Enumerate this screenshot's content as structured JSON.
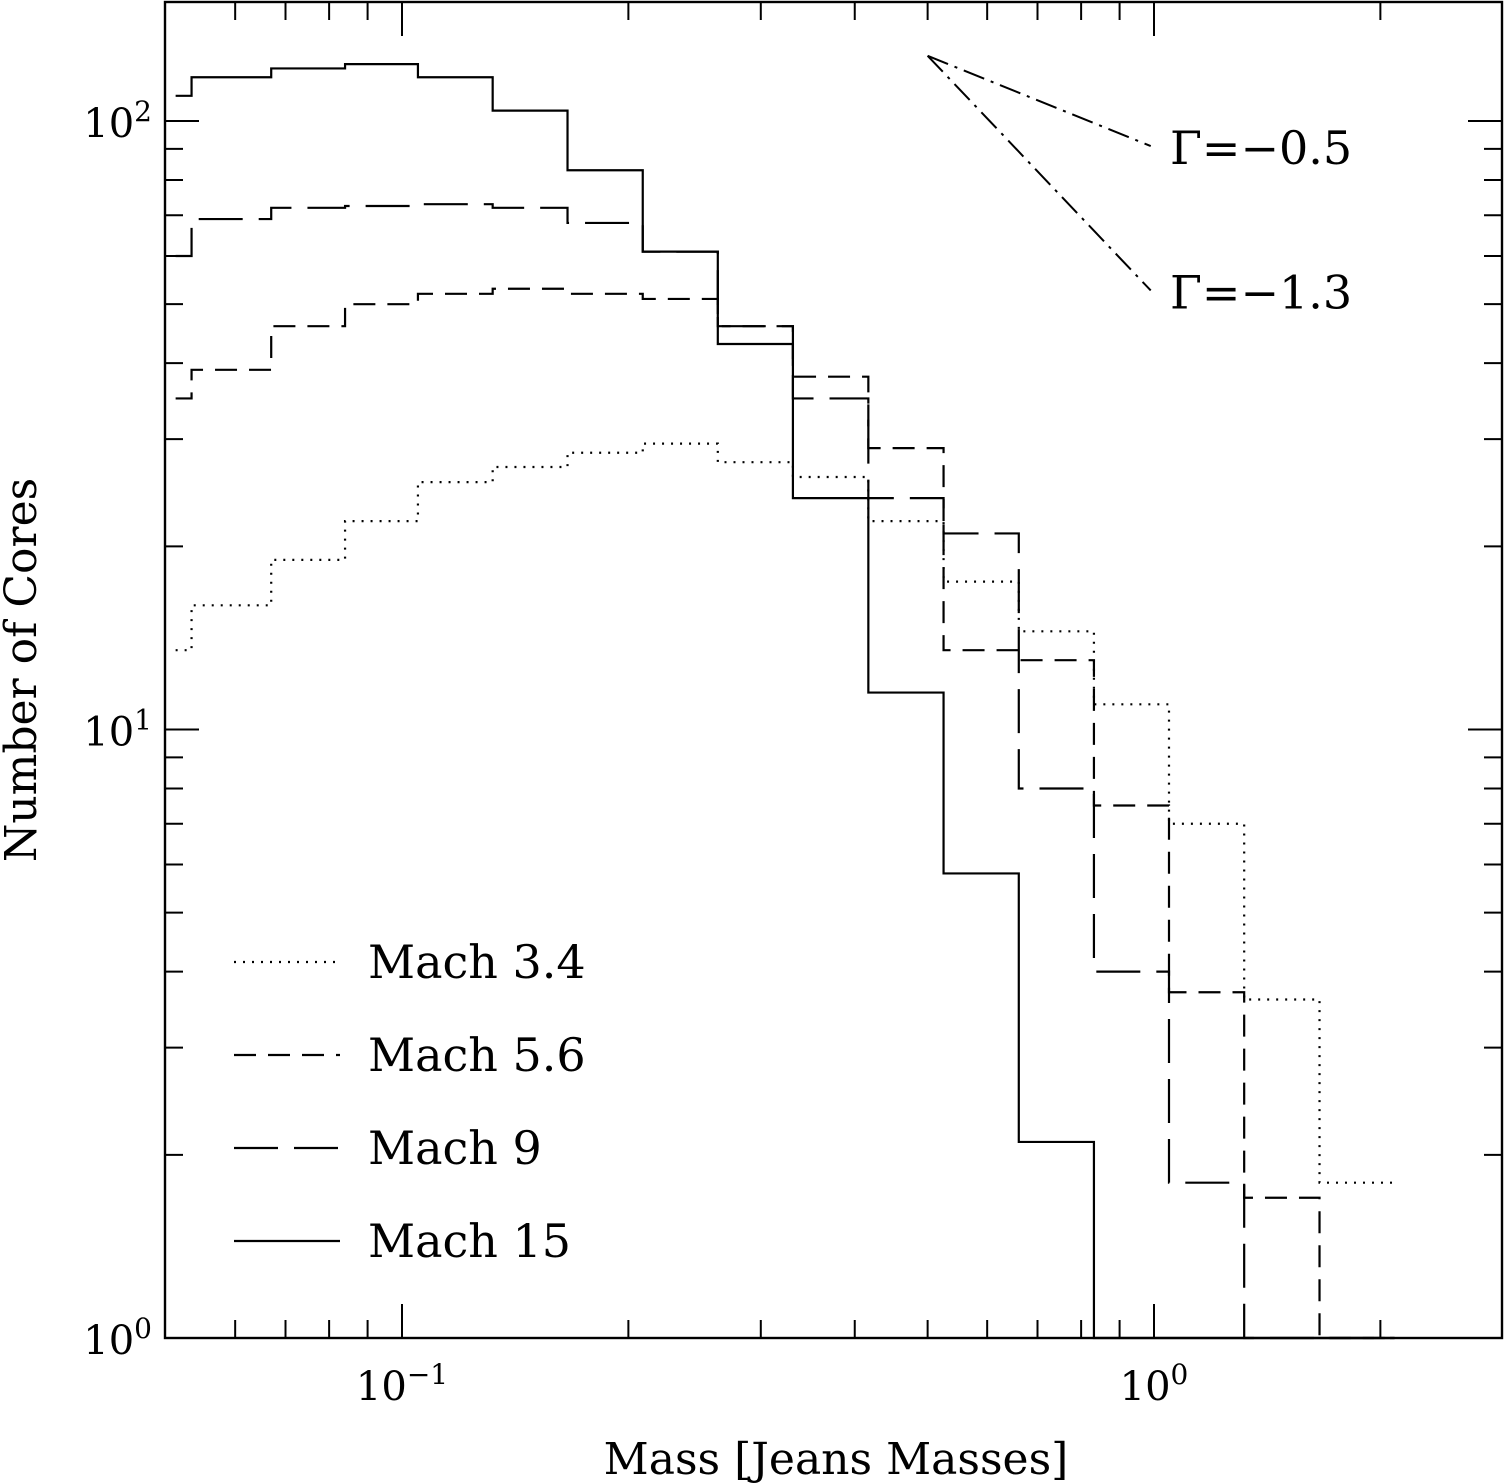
{
  "chart_data": {
    "type": "line",
    "style": "step-histogram",
    "title": "",
    "xlabel": "Mass [Jeans Masses]",
    "ylabel": "Number of Cores",
    "xscale": "log",
    "yscale": "log",
    "xlim": [
      0.05,
      2.6
    ],
    "ylim": [
      1,
      160
    ],
    "x_tick_labels": [
      {
        "value": 0.1,
        "base": "10",
        "exp": "−1"
      },
      {
        "value": 1,
        "base": "10",
        "exp": "0"
      }
    ],
    "y_tick_labels": [
      {
        "value": 1,
        "base": "10",
        "exp": "0"
      },
      {
        "value": 10,
        "base": "10",
        "exp": "1"
      },
      {
        "value": 100,
        "base": "10",
        "exp": "2"
      }
    ],
    "bin_edges": [
      0.05,
      0.0525,
      0.067,
      0.084,
      0.105,
      0.132,
      0.166,
      0.209,
      0.263,
      0.331,
      0.417,
      0.525,
      0.661,
      0.832,
      1.047,
      1.318,
      1.66,
      2.089
    ],
    "series": [
      {
        "name": "Mach 3.4",
        "dash": "dotted",
        "values": [
          13.5,
          16,
          19,
          22,
          25.5,
          27,
          28.5,
          29.5,
          27.5,
          26,
          22,
          17.5,
          14.5,
          11,
          7,
          3.6,
          1.8
        ]
      },
      {
        "name": "Mach 5.6",
        "dash": "short-dash",
        "values": [
          35,
          39,
          46,
          50,
          52,
          53,
          52,
          51,
          46,
          38,
          29,
          13.5,
          13,
          7.5,
          3.7,
          1.7,
          0.9
        ]
      },
      {
        "name": "Mach 9",
        "dash": "long-dash",
        "values": [
          60,
          69,
          72,
          72.5,
          73,
          72,
          68,
          61,
          46,
          35,
          24,
          21,
          8,
          4,
          1.8,
          0.9,
          0.9
        ]
      },
      {
        "name": "Mach 15",
        "dash": "solid",
        "values": [
          110,
          118,
          122,
          124,
          118,
          104,
          83,
          61,
          43,
          24,
          11.5,
          5.8,
          2.1,
          0.9,
          0.9,
          0.9,
          0.9
        ]
      }
    ],
    "legend_position": "bottom-left",
    "annotations": [
      {
        "label": "Γ=−0.5",
        "slope": -0.5,
        "dash": "dash-dot",
        "x_start": 0.5,
        "x_end": 0.99,
        "y_start": 128
      },
      {
        "label": "Γ=−1.3",
        "slope": -1.3,
        "dash": "dash-dot",
        "x_start": 0.5,
        "x_end": 0.99,
        "y_start": 128
      }
    ]
  }
}
